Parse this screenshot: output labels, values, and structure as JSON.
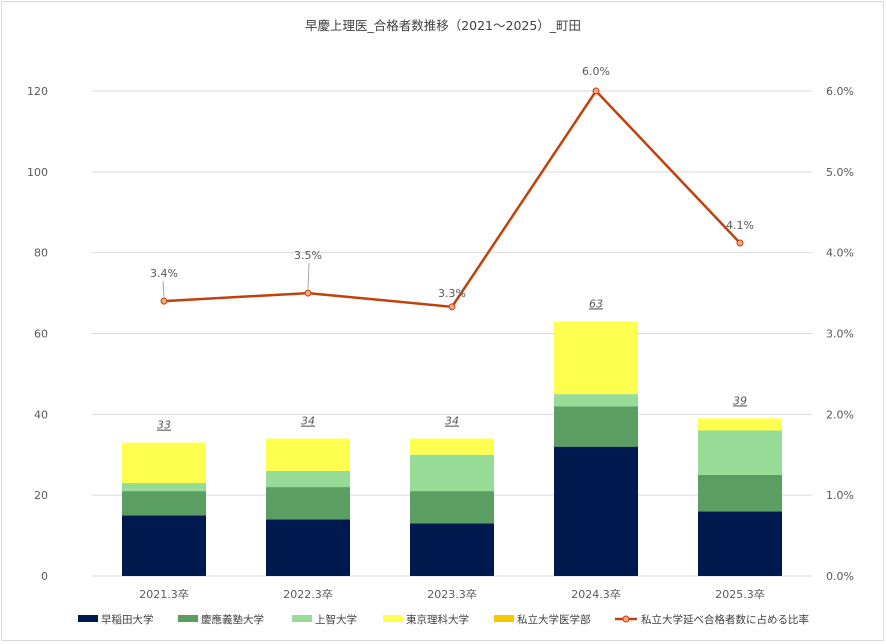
{
  "chart_data": {
    "type": "bar",
    "title": "早慶上理医_合格者数推移（2021～2025）_町田",
    "categories": [
      "2021.3卒",
      "2022.3卒",
      "2023.3卒",
      "2024.3卒",
      "2025.3卒"
    ],
    "stacked": true,
    "series": [
      {
        "name": "早稲田大学",
        "color": "#001a4f",
        "values": [
          15,
          14,
          13,
          32,
          16
        ]
      },
      {
        "name": "慶應義塾大学",
        "color": "#5a9e61",
        "values": [
          6,
          8,
          8,
          10,
          9
        ]
      },
      {
        "name": "上智大学",
        "color": "#96dc96",
        "values": [
          2,
          4,
          9,
          3,
          11
        ]
      },
      {
        "name": "東京理科大学",
        "color": "#ffff50",
        "values": [
          10,
          8,
          4,
          18,
          3
        ]
      },
      {
        "name": "私立大学医学部",
        "color": "#f5c800",
        "values": [
          0,
          0,
          0,
          0,
          0
        ]
      }
    ],
    "totals": [
      "33",
      "34",
      "34",
      "63",
      "39"
    ],
    "line_series": {
      "name": "私立大学延べ合格者数に占める比率",
      "color": "#c0410c",
      "axis": "right",
      "values": [
        3.4,
        3.5,
        3.33,
        6.0,
        4.12
      ],
      "labels": [
        "3.4%",
        "3.5%",
        "3.3%",
        "6.0%",
        "4.1%"
      ]
    },
    "ylim": [
      0,
      120
    ],
    "yticks": [
      "0",
      "20",
      "40",
      "60",
      "80",
      "100",
      "120"
    ],
    "y2lim": [
      0,
      6
    ],
    "y2ticks": [
      "0.0%",
      "1.0%",
      "2.0%",
      "3.0%",
      "4.0%",
      "5.0%",
      "6.0%"
    ],
    "grid": true,
    "legend_position": "bottom"
  }
}
